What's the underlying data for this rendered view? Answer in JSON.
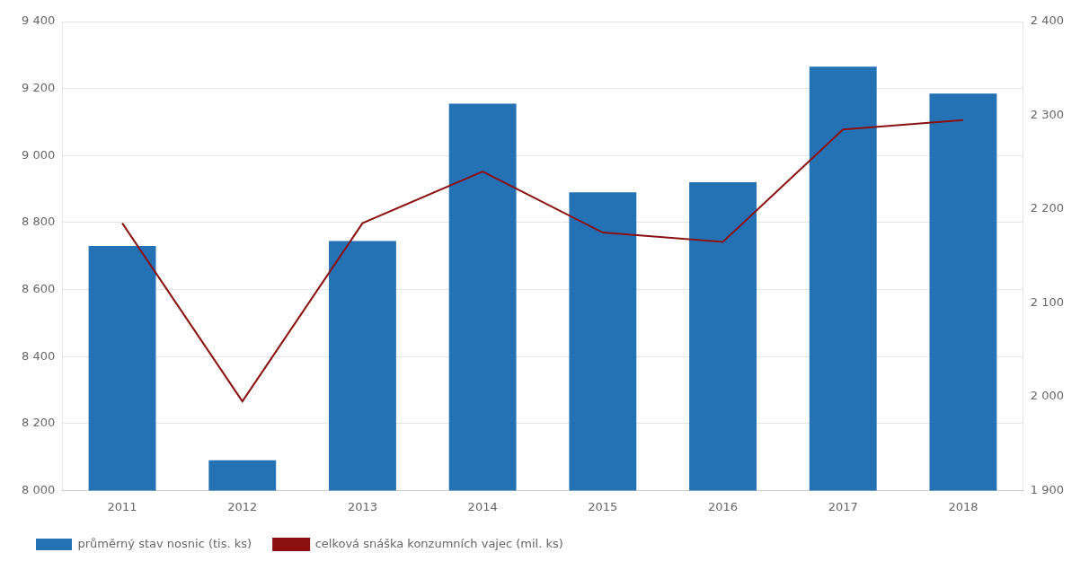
{
  "chart_data": {
    "type": "bar",
    "categories": [
      "2011",
      "2012",
      "2013",
      "2014",
      "2015",
      "2016",
      "2017",
      "2018"
    ],
    "series": [
      {
        "name": "průměrný stav nosnic (tis. ks)",
        "type": "bar",
        "color": "#2472b4",
        "values": [
          8730,
          8090,
          8745,
          9155,
          8890,
          8920,
          9265,
          9185
        ]
      },
      {
        "name": "celková snáška konzumních vajec (mil. ks)",
        "type": "line",
        "color": "#8B1010",
        "axis": "y2",
        "values": [
          2185,
          1995,
          2185,
          2240,
          2175,
          2165,
          2285,
          2295
        ]
      }
    ],
    "ylim": [
      8000,
      9400
    ],
    "yticks": [
      {
        "value": 8000,
        "label": "8 000"
      },
      {
        "value": 8200,
        "label": "8 200"
      },
      {
        "value": 8400,
        "label": "8 400"
      },
      {
        "value": 8600,
        "label": "8 600"
      },
      {
        "value": 8800,
        "label": "8 800"
      },
      {
        "value": 9000,
        "label": "9 000"
      },
      {
        "value": 9200,
        "label": "9 200"
      },
      {
        "value": 9400,
        "label": "9 400"
      }
    ],
    "y2lim": [
      1900,
      2400
    ],
    "y2ticks": [
      {
        "value": 1900,
        "label": "1 900"
      },
      {
        "value": 2000,
        "label": "2 000"
      },
      {
        "value": 2100,
        "label": "2 100"
      },
      {
        "value": 2200,
        "label": "2 200"
      },
      {
        "value": 2300,
        "label": "2 300"
      },
      {
        "value": 2400,
        "label": "2 400"
      }
    ],
    "grid": true,
    "legend": "bottom"
  }
}
